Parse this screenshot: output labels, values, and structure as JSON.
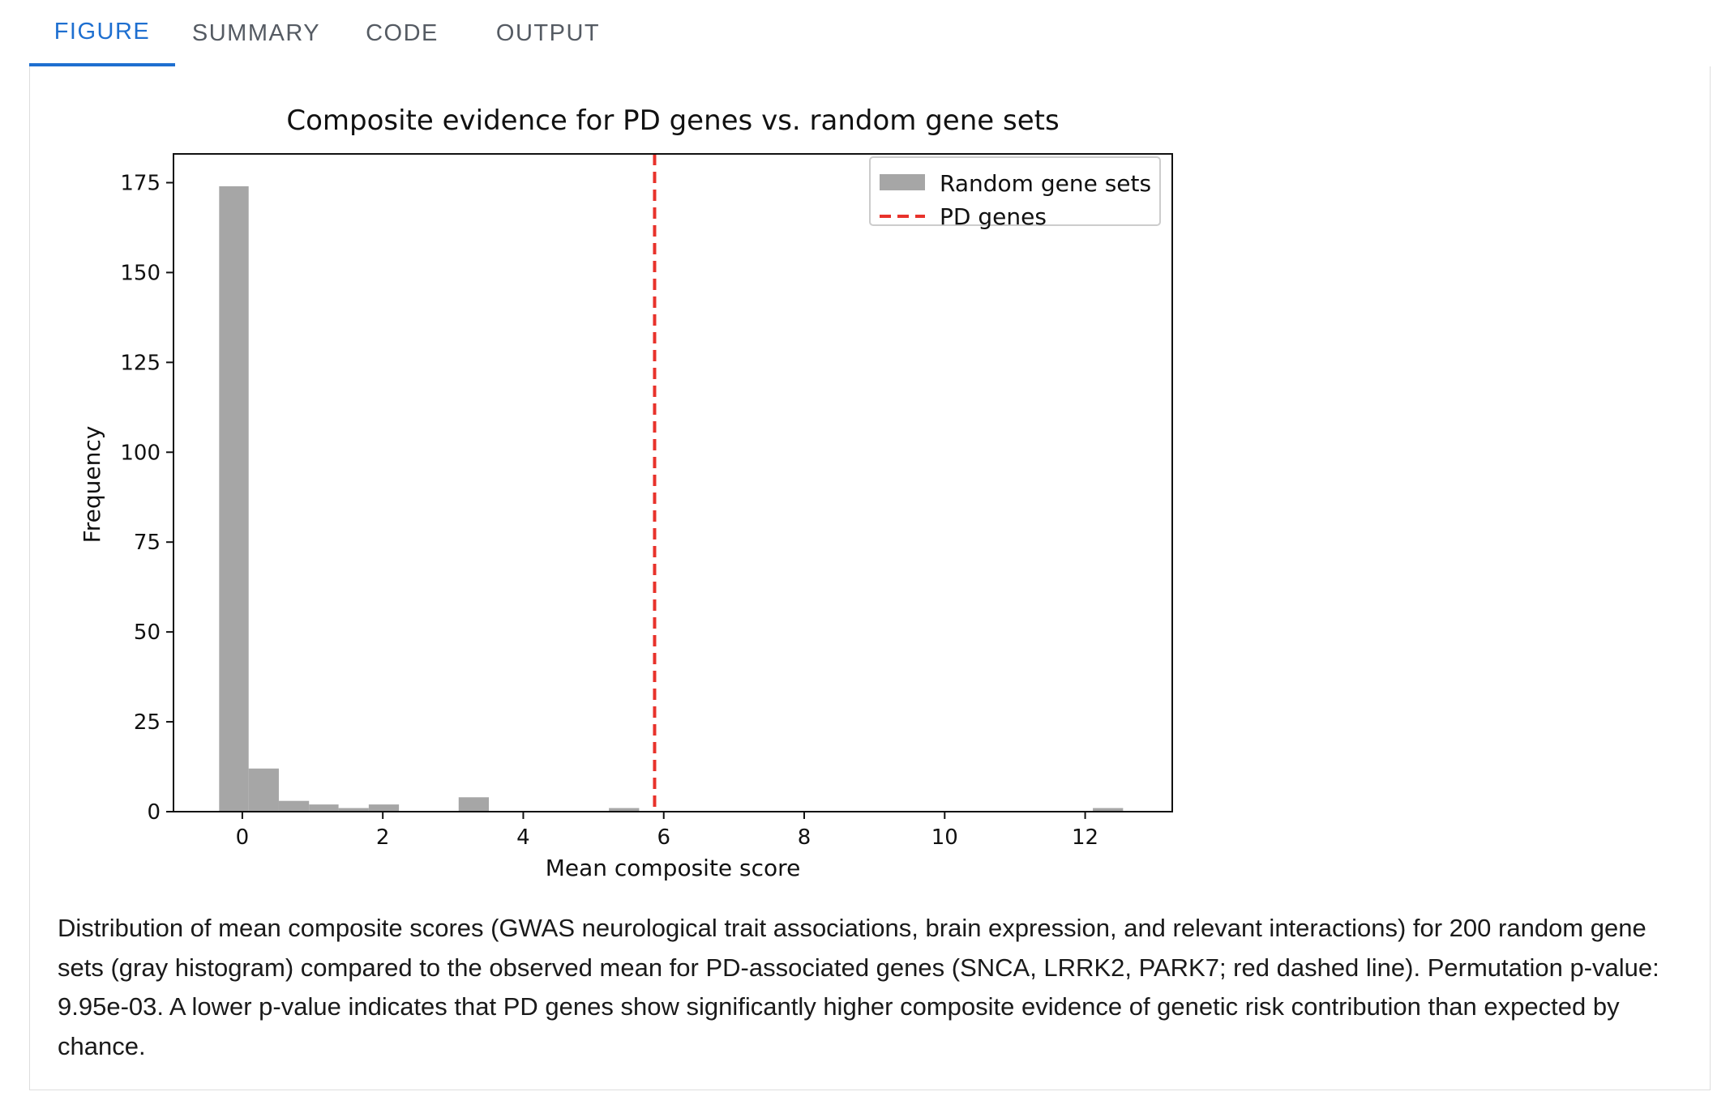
{
  "tabs": [
    {
      "label": "FIGURE",
      "active": true
    },
    {
      "label": "SUMMARY",
      "active": false
    },
    {
      "label": "CODE",
      "active": false
    },
    {
      "label": "OUTPUT",
      "active": false
    }
  ],
  "colors": {
    "accent": "#1e6fd0",
    "bars": "#a6a6a6",
    "pd_line": "#e8322b"
  },
  "chart_data": {
    "type": "bar",
    "title": "Composite evidence for PD genes vs. random gene sets",
    "xlabel": "Mean composite score",
    "ylabel": "Frequency",
    "xlim": [
      -0.98,
      13.24
    ],
    "ylim": [
      0,
      183
    ],
    "xticks": [
      0,
      2,
      4,
      6,
      8,
      10,
      12
    ],
    "yticks": [
      0,
      25,
      50,
      75,
      100,
      125,
      150,
      175
    ],
    "grid": false,
    "legend_position": "top-right",
    "series": [
      {
        "name": "Random gene sets",
        "kind": "histogram",
        "bins": [
          {
            "x0": -0.33,
            "x1": 0.09,
            "count": 174
          },
          {
            "x0": 0.09,
            "x1": 0.52,
            "count": 12
          },
          {
            "x0": 0.52,
            "x1": 0.95,
            "count": 3
          },
          {
            "x0": 0.95,
            "x1": 1.37,
            "count": 2
          },
          {
            "x0": 1.37,
            "x1": 1.8,
            "count": 1
          },
          {
            "x0": 1.8,
            "x1": 2.23,
            "count": 2
          },
          {
            "x0": 3.08,
            "x1": 3.51,
            "count": 4
          },
          {
            "x0": 5.22,
            "x1": 5.65,
            "count": 1
          },
          {
            "x0": 12.11,
            "x1": 12.54,
            "count": 1
          }
        ]
      },
      {
        "name": "PD genes",
        "kind": "vline",
        "x": 5.87
      }
    ]
  },
  "caption": "Distribution of mean composite scores (GWAS neurological trait associations, brain expression, and relevant interactions) for 200 random gene sets (gray histogram) compared to the observed mean for PD-associated genes (SNCA, LRRK2, PARK7; red dashed line). Permutation p-value: 9.95e-03. A lower p-value indicates that PD genes show significantly higher composite evidence of genetic risk contribution than expected by chance."
}
